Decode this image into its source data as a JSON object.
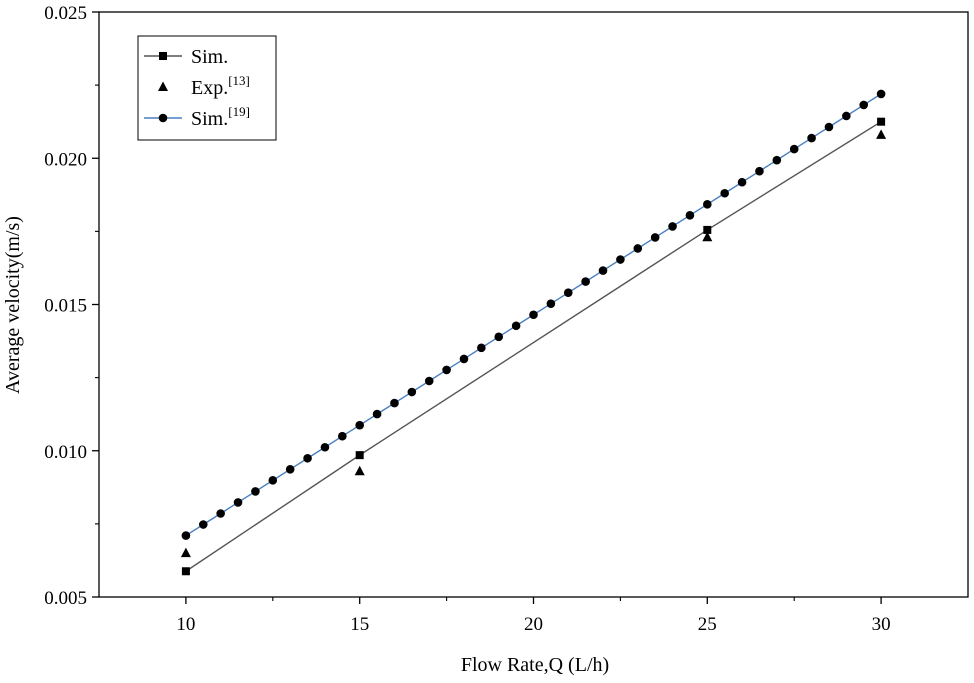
{
  "chart_data": {
    "type": "line",
    "title": "",
    "xlabel": "Flow Rate,Q (L/h)",
    "ylabel": "Average velocity(m/s)",
    "xlim": [
      7.5,
      32.5
    ],
    "ylim": [
      0.005,
      0.025
    ],
    "xticks": [
      10,
      15,
      20,
      25,
      30
    ],
    "xtick_labels": [
      "10",
      "15",
      "20",
      "25",
      "30"
    ],
    "yticks": [
      0.005,
      0.01,
      0.015,
      0.02,
      0.025
    ],
    "ytick_labels": [
      "0.005",
      "0.010",
      "0.015",
      "0.020",
      "0.025"
    ],
    "grid": false,
    "legend_position": "top-left",
    "series": [
      {
        "name": "Sim.",
        "legend_base": "Sim.",
        "legend_sup": "",
        "marker": "square",
        "line": true,
        "color": "#000000",
        "line_color": "#555555",
        "x": [
          10,
          15,
          25,
          30
        ],
        "y": [
          0.00588,
          0.00985,
          0.01755,
          0.02125
        ]
      },
      {
        "name": "Exp.[13]",
        "legend_base": "Exp.",
        "legend_sup": "[13]",
        "marker": "triangle",
        "line": false,
        "color": "#000000",
        "line_color": "",
        "x": [
          10,
          15,
          25,
          30
        ],
        "y": [
          0.0065,
          0.0093,
          0.0173,
          0.0208
        ]
      },
      {
        "name": "Sim.[19]",
        "legend_base": "Sim.",
        "legend_sup": "[19]",
        "marker": "circle",
        "line": true,
        "color": "#000000",
        "line_color": "#4a7fc1",
        "x": [
          10.0,
          10.5,
          11.0,
          11.5,
          12.0,
          12.5,
          13.0,
          13.5,
          14.0,
          14.5,
          15.0,
          15.5,
          16.0,
          16.5,
          17.0,
          17.5,
          18.0,
          18.5,
          19.0,
          19.5,
          20.0,
          20.5,
          21.0,
          21.5,
          22.0,
          22.5,
          23.0,
          23.5,
          24.0,
          24.5,
          25.0,
          25.5,
          26.0,
          26.5,
          27.0,
          27.5,
          28.0,
          28.5,
          29.0,
          29.5,
          30.0
        ],
        "y": [
          0.0071,
          0.007478,
          0.007855,
          0.008233,
          0.00861,
          0.008988,
          0.009365,
          0.009743,
          0.01012,
          0.010498,
          0.010875,
          0.011253,
          0.01163,
          0.012008,
          0.012385,
          0.012763,
          0.01314,
          0.013518,
          0.013895,
          0.014273,
          0.01465,
          0.015028,
          0.015405,
          0.015783,
          0.01616,
          0.016538,
          0.016915,
          0.017293,
          0.01767,
          0.018048,
          0.018425,
          0.018803,
          0.01918,
          0.019558,
          0.019935,
          0.020313,
          0.02069,
          0.021068,
          0.021445,
          0.021823,
          0.0222
        ]
      }
    ]
  }
}
